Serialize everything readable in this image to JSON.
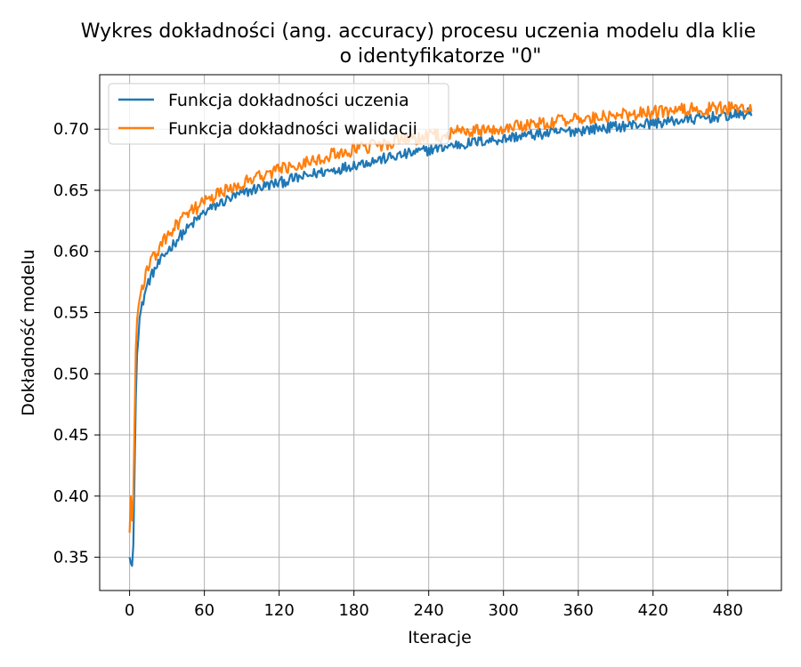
{
  "chart_data": {
    "type": "line",
    "title_line1": "Wykres dokładności (ang. accuracy) procesu uczenia modelu dla klie",
    "title_line2": "o identyfikatorze \"0\"",
    "xlabel": "Iteracje",
    "ylabel": "Dokładność modelu",
    "xlim": [
      -24,
      523
    ],
    "ylim": [
      0.3228,
      0.7445
    ],
    "xticks": [
      0,
      60,
      120,
      180,
      240,
      300,
      360,
      420,
      480
    ],
    "yticks": [
      0.35,
      0.4,
      0.45,
      0.5,
      0.55,
      0.6,
      0.65,
      0.7
    ],
    "ytick_labels": [
      "0.35",
      "0.40",
      "0.45",
      "0.50",
      "0.55",
      "0.60",
      "0.65",
      "0.70"
    ],
    "grid": true,
    "legend_position": "upper-left",
    "series": [
      {
        "name": "Funkcja dokładności uczenia",
        "color": "#1f77b4",
        "x": [
          0,
          1,
          2,
          3,
          4,
          5,
          6,
          8,
          10,
          12,
          15,
          20,
          25,
          30,
          40,
          50,
          60,
          70,
          80,
          90,
          100,
          110,
          120,
          130,
          140,
          150,
          160,
          170,
          180,
          190,
          200,
          210,
          220,
          230,
          240,
          250,
          260,
          270,
          280,
          290,
          300,
          310,
          320,
          330,
          340,
          350,
          360,
          370,
          380,
          390,
          400,
          410,
          420,
          430,
          440,
          450,
          460,
          470,
          480,
          490,
          499
        ],
        "y": [
          0.35,
          0.345,
          0.343,
          0.36,
          0.42,
          0.48,
          0.52,
          0.545,
          0.555,
          0.565,
          0.575,
          0.585,
          0.592,
          0.6,
          0.612,
          0.622,
          0.632,
          0.638,
          0.643,
          0.647,
          0.651,
          0.654,
          0.656,
          0.659,
          0.661,
          0.664,
          0.666,
          0.668,
          0.671,
          0.673,
          0.675,
          0.677,
          0.679,
          0.681,
          0.683,
          0.685,
          0.687,
          0.688,
          0.69,
          0.691,
          0.692,
          0.694,
          0.695,
          0.696,
          0.697,
          0.698,
          0.699,
          0.7,
          0.701,
          0.702,
          0.703,
          0.704,
          0.705,
          0.706,
          0.707,
          0.708,
          0.709,
          0.71,
          0.711,
          0.712,
          0.713
        ],
        "noise": 0.0045
      },
      {
        "name": "Funkcja dokładności walidacji",
        "color": "#ff7f0e",
        "x": [
          0,
          1,
          2,
          3,
          4,
          5,
          6,
          8,
          10,
          12,
          15,
          20,
          25,
          30,
          40,
          50,
          60,
          70,
          80,
          90,
          100,
          110,
          120,
          130,
          140,
          150,
          160,
          170,
          180,
          190,
          200,
          210,
          220,
          230,
          240,
          250,
          260,
          270,
          280,
          290,
          300,
          310,
          320,
          330,
          340,
          350,
          360,
          370,
          380,
          390,
          400,
          410,
          420,
          430,
          440,
          450,
          460,
          470,
          480,
          490,
          499
        ],
        "y": [
          0.37,
          0.4,
          0.38,
          0.4,
          0.46,
          0.52,
          0.545,
          0.56,
          0.57,
          0.578,
          0.588,
          0.596,
          0.604,
          0.612,
          0.624,
          0.633,
          0.64,
          0.646,
          0.651,
          0.656,
          0.66,
          0.664,
          0.667,
          0.67,
          0.673,
          0.676,
          0.678,
          0.681,
          0.683,
          0.685,
          0.687,
          0.689,
          0.691,
          0.692,
          0.694,
          0.695,
          0.697,
          0.698,
          0.699,
          0.7,
          0.701,
          0.703,
          0.704,
          0.705,
          0.706,
          0.707,
          0.708,
          0.709,
          0.71,
          0.711,
          0.712,
          0.713,
          0.714,
          0.714,
          0.715,
          0.716,
          0.716,
          0.717,
          0.717,
          0.718,
          0.716
        ],
        "noise": 0.0055
      }
    ]
  }
}
